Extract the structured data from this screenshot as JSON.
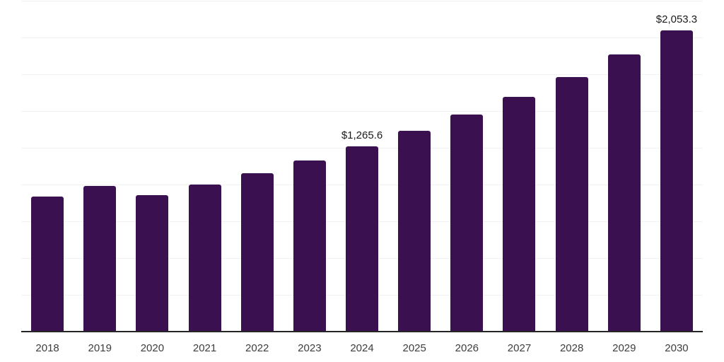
{
  "chart_data": {
    "type": "bar",
    "title": "",
    "xlabel": "",
    "ylabel": "",
    "categories": [
      "2018",
      "2019",
      "2020",
      "2021",
      "2022",
      "2023",
      "2024",
      "2025",
      "2026",
      "2027",
      "2028",
      "2029",
      "2030"
    ],
    "values": [
      925,
      993,
      935,
      1007,
      1084,
      1166,
      1265.6,
      1372,
      1482,
      1602,
      1736,
      1890,
      2053.3
    ],
    "data_labels": {
      "2024": "$1,265.6",
      "2030": "$2,053.3"
    },
    "ylim": [
      0,
      2250
    ],
    "gridline_step": 250,
    "grid": true,
    "legend": "none",
    "y_tick_labels_visible": false,
    "colors": {
      "bar": "#3a1050",
      "gridline": "#f2f2f2",
      "axis_line": "#262626",
      "data_label": "#1a1a1a",
      "tick_label": "#3d3d3d"
    }
  }
}
